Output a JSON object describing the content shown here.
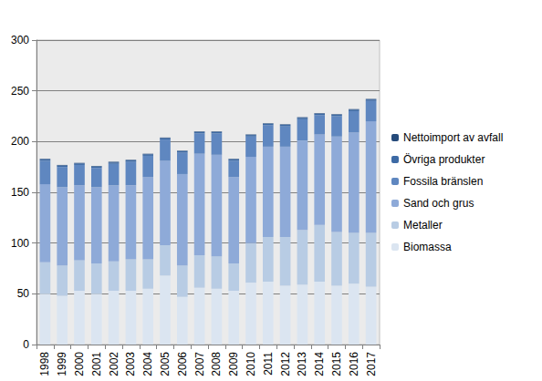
{
  "chart_data": {
    "type": "bar",
    "stacked": true,
    "grid": true,
    "legend": "right",
    "categories": [
      "1998",
      "1999",
      "2000",
      "2001",
      "2002",
      "2003",
      "2004",
      "2005",
      "2006",
      "2007",
      "2008",
      "2009",
      "2010",
      "2011",
      "2012",
      "2013",
      "2014",
      "2015",
      "2016",
      "2017"
    ],
    "ylim": [
      0,
      300
    ],
    "yticks": [
      0,
      50,
      100,
      150,
      200,
      250,
      300
    ],
    "series": [
      {
        "name": "Biomassa",
        "color": "#dbe5f1",
        "values": [
          50,
          48,
          53,
          50,
          53,
          53,
          55,
          68,
          47,
          56,
          55,
          53,
          61,
          62,
          58,
          59,
          62,
          58,
          60,
          57
        ]
      },
      {
        "name": "Metaller",
        "color": "#b8cce4",
        "values": [
          31,
          30,
          30,
          30,
          29,
          31,
          29,
          30,
          31,
          32,
          32,
          27,
          39,
          44,
          48,
          54,
          56,
          53,
          50,
          53
        ]
      },
      {
        "name": "Sand och grus",
        "color": "#8eaad8",
        "values": [
          77,
          77,
          74,
          75,
          75,
          73,
          81,
          83,
          90,
          100,
          100,
          85,
          85,
          89,
          89,
          88,
          89,
          94,
          99,
          110
        ]
      },
      {
        "name": "Fossila bränslen",
        "color": "#5f87c0",
        "values": [
          23,
          20,
          20,
          19,
          21,
          23,
          21,
          21,
          21,
          20,
          21,
          16,
          20,
          21,
          20,
          21,
          19,
          20,
          21,
          20
        ]
      },
      {
        "name": "Övriga produkter",
        "color": "#3d6aa5",
        "values": [
          1.5,
          1.5,
          1.5,
          1.5,
          1.5,
          1.5,
          1.5,
          1.5,
          1.5,
          1.5,
          1.5,
          1.5,
          1.5,
          1.5,
          1.5,
          1.5,
          1.5,
          1.5,
          1.5,
          1.5
        ]
      },
      {
        "name": "Nettoimport av avfall",
        "color": "#254a7a",
        "values": [
          0.5,
          0.5,
          0.5,
          0.5,
          0.5,
          0.5,
          0.5,
          0.5,
          0.5,
          0.5,
          0.5,
          0.5,
          0.5,
          0.5,
          0.5,
          0.5,
          0.5,
          0.5,
          0.5,
          0.5
        ]
      }
    ]
  }
}
